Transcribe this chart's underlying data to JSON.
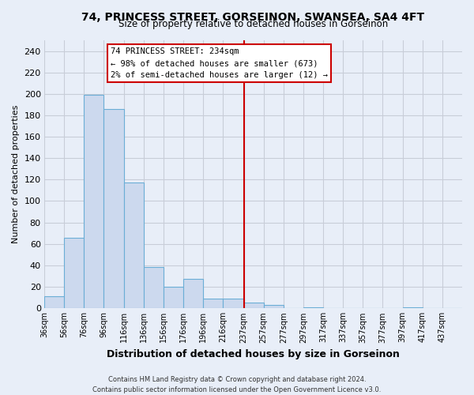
{
  "title": "74, PRINCESS STREET, GORSEINON, SWANSEA, SA4 4FT",
  "subtitle": "Size of property relative to detached houses in Gorseinon",
  "xlabel": "Distribution of detached houses by size in Gorseinon",
  "ylabel": "Number of detached properties",
  "bin_left_edges": [
    36,
    56,
    76,
    96,
    116,
    136,
    156,
    176,
    196,
    216,
    237,
    257,
    277,
    297,
    317,
    337,
    357,
    377,
    397,
    417,
    437
  ],
  "bar_heights": [
    11,
    66,
    199,
    186,
    117,
    38,
    20,
    27,
    9,
    9,
    5,
    3,
    0,
    1,
    0,
    0,
    0,
    0,
    1,
    0,
    0
  ],
  "bar_color": "#ccd9ee",
  "bar_edge_color": "#6baed6",
  "vline_x": 237,
  "vline_color": "#cc0000",
  "annotation_title": "74 PRINCESS STREET: 234sqm",
  "annotation_line1": "← 98% of detached houses are smaller (673)",
  "annotation_line2": "2% of semi-detached houses are larger (12) →",
  "annotation_box_color": "#ffffff",
  "annotation_box_edge": "#cc0000",
  "ylim": [
    0,
    250
  ],
  "yticks": [
    0,
    20,
    40,
    60,
    80,
    100,
    120,
    140,
    160,
    180,
    200,
    220,
    240
  ],
  "xtick_labels": [
    "36sqm",
    "56sqm",
    "76sqm",
    "96sqm",
    "116sqm",
    "136sqm",
    "156sqm",
    "176sqm",
    "196sqm",
    "216sqm",
    "237sqm",
    "257sqm",
    "277sqm",
    "297sqm",
    "317sqm",
    "337sqm",
    "357sqm",
    "377sqm",
    "397sqm",
    "417sqm",
    "437sqm"
  ],
  "footer1": "Contains HM Land Registry data © Crown copyright and database right 2024.",
  "footer2": "Contains public sector information licensed under the Open Government Licence v3.0.",
  "background_color": "#e8eef8",
  "grid_color": "#c8cdd8"
}
